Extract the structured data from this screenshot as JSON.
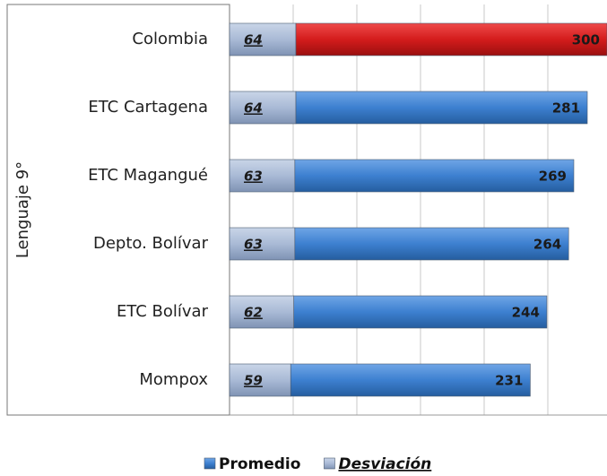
{
  "chart_data": {
    "type": "bar",
    "orientation": "horizontal",
    "stacked": true,
    "y_axis_label": "Lenguaje 9°",
    "categories": [
      "Colombia",
      "ETC Cartagena",
      "ETC Magangué",
      "Depto. Bolívar",
      "ETC Bolívar",
      "Mompox"
    ],
    "series": [
      {
        "name": "Desviación",
        "color": "#a9bad6",
        "values": [
          64,
          64,
          63,
          63,
          62,
          59
        ]
      },
      {
        "name": "Promedio",
        "color": "#3d80d0",
        "colors": [
          "#d41c1c",
          "#3d80d0",
          "#3d80d0",
          "#3d80d0",
          "#3d80d0",
          "#3d80d0"
        ],
        "values": [
          300,
          281,
          269,
          264,
          244,
          231
        ]
      }
    ],
    "xlim": [
      0,
      364
    ],
    "grid": true,
    "legend": "bottom"
  }
}
